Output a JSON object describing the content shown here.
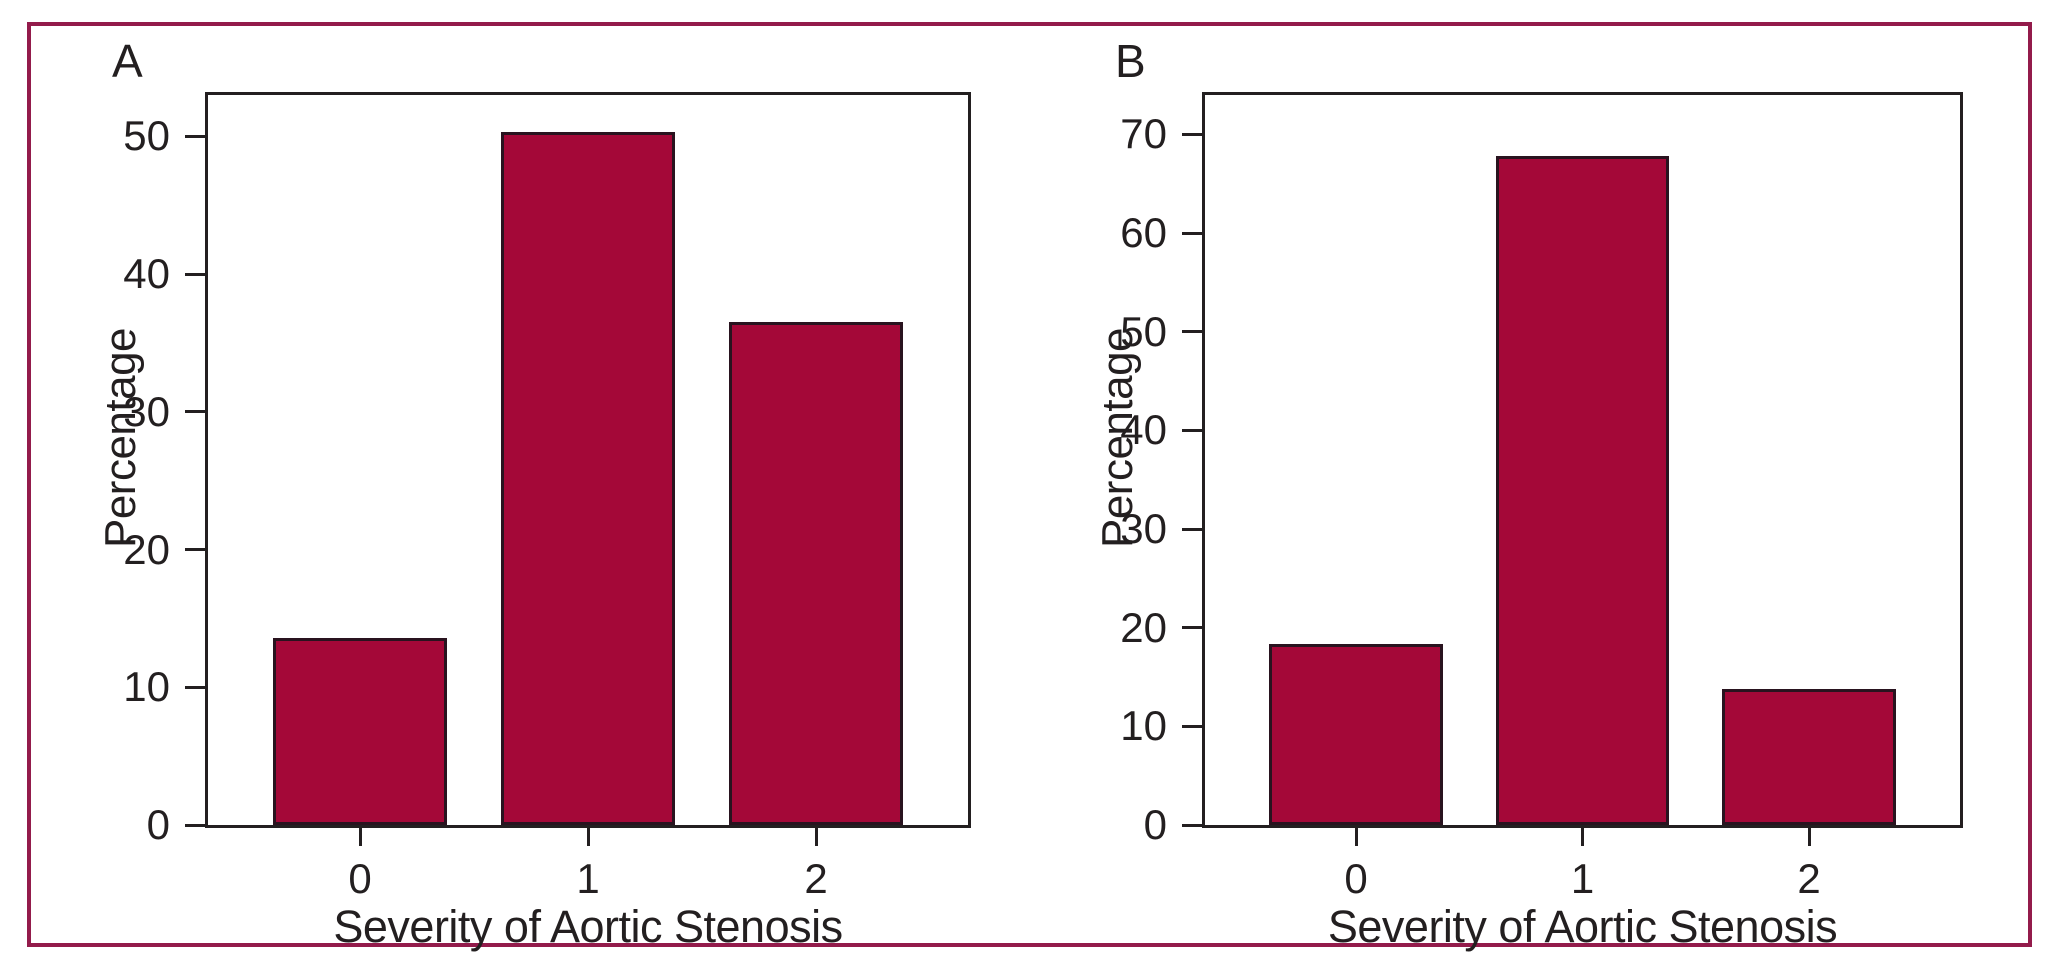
{
  "figure": {
    "background": "#ffffff",
    "border_color": "#931B4B",
    "frame_color": "#231F20",
    "text_color": "#231F20"
  },
  "chart_data": [
    {
      "panel": "A",
      "type": "bar",
      "categories": [
        "0",
        "1",
        "2"
      ],
      "values": [
        13.6,
        50.3,
        36.5
      ],
      "xlabel": "Severity of Aortic Stenosis",
      "ylabel": "Percentage",
      "ylim": [
        0,
        53
      ],
      "yticks": [
        0,
        10,
        20,
        30,
        40,
        50
      ],
      "grid": "off",
      "legend": "none",
      "bar_color": "#A40838",
      "bar_edge_color": "#29131F",
      "bar_centers_frac": [
        0.2,
        0.5,
        0.8
      ],
      "bar_width_frac": 0.23
    },
    {
      "panel": "B",
      "type": "bar",
      "categories": [
        "0",
        "1",
        "2"
      ],
      "values": [
        18.4,
        67.8,
        13.8
      ],
      "xlabel": "Severity of Aortic Stenosis",
      "ylabel": "Percentage",
      "ylim": [
        0,
        74
      ],
      "yticks": [
        0,
        10,
        20,
        30,
        40,
        50,
        60,
        70
      ],
      "grid": "off",
      "legend": "none",
      "bar_color": "#A40838",
      "bar_edge_color": "#29131F",
      "bar_centers_frac": [
        0.2,
        0.5,
        0.8
      ],
      "bar_width_frac": 0.23
    }
  ]
}
